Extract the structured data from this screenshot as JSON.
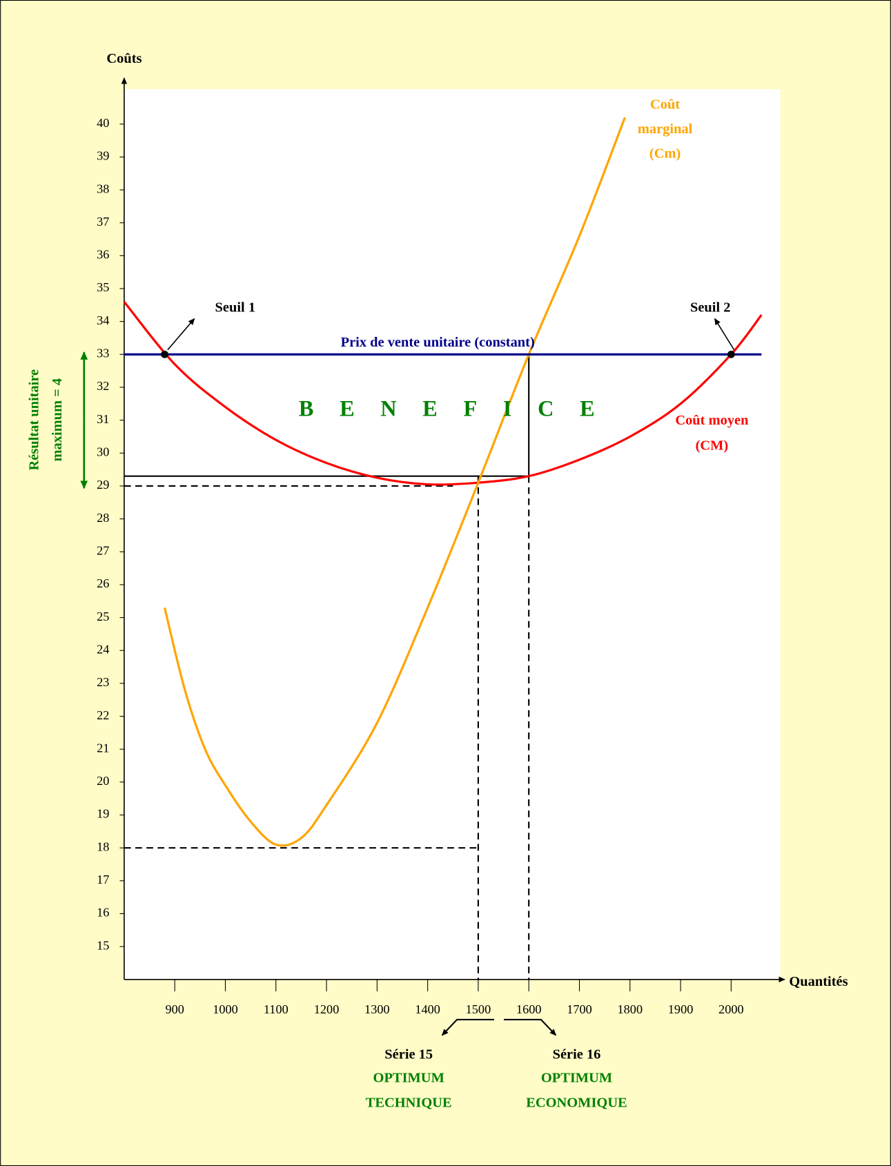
{
  "chart_data": {
    "type": "line",
    "y_label": "Coûts",
    "x_label": "Quantités",
    "xlim": [
      800,
      2097
    ],
    "ylim": [
      14,
      41.4
    ],
    "xticks": [
      900,
      1000,
      1100,
      1200,
      1300,
      1400,
      1500,
      1600,
      1700,
      1800,
      1900,
      2000
    ],
    "yticks": [
      15,
      16,
      17,
      18,
      19,
      20,
      21,
      22,
      23,
      24,
      25,
      26,
      27,
      28,
      29,
      30,
      31,
      32,
      33,
      34,
      35,
      36,
      37,
      38,
      39,
      40
    ],
    "series": [
      {
        "label": [
          "Coût moyen",
          "(CM)"
        ],
        "color": "#ff0000",
        "x": [
          800,
          900,
          1000,
          1100,
          1200,
          1300,
          1400,
          1500,
          1600,
          1700,
          1800,
          1900,
          2000,
          2060
        ],
        "values": [
          34.6,
          32.7,
          31.4,
          30.4,
          29.7,
          29.25,
          29.05,
          29.1,
          29.3,
          29.8,
          30.5,
          31.5,
          33.0,
          34.2
        ]
      },
      {
        "label": [
          "Coût",
          "marginal",
          "(Cm)"
        ],
        "color": "#ffa500",
        "x": [
          880,
          920,
          960,
          1000,
          1050,
          1100,
          1150,
          1200,
          1300,
          1400,
          1500,
          1600,
          1700,
          1790
        ],
        "values": [
          25.3,
          22.8,
          21.0,
          19.9,
          18.8,
          18.1,
          18.3,
          19.3,
          21.8,
          25.3,
          29.1,
          33.0,
          36.6,
          40.2
        ]
      },
      {
        "label": [
          "Prix de vente unitaire (constant)"
        ],
        "color": "#00008b",
        "x": [
          800,
          2060
        ],
        "values": [
          33,
          33
        ]
      }
    ],
    "points": [
      {
        "x": 880,
        "y": 33,
        "label": "Seuil 1"
      },
      {
        "x": 2000,
        "y": 33,
        "label": "Seuil 2"
      }
    ],
    "h_dashed": [
      {
        "x": 1450,
        "y": 29
      },
      {
        "x": 1500,
        "y": 18
      }
    ],
    "h_solid": [
      {
        "x": 1600,
        "y": 29.3
      }
    ],
    "v_dashed": [
      {
        "x": 1500,
        "y": 29.3
      },
      {
        "x": 1600,
        "y": 29.3
      }
    ],
    "v_solid": [
      {
        "x": 1600,
        "y": [
          33,
          29.3
        ]
      }
    ],
    "zone_label": "BENEFICE",
    "result": {
      "range": [
        29,
        33
      ],
      "label": [
        "Résultat unitaire",
        "maximum = 4"
      ]
    },
    "optima": [
      {
        "title": "Série 15",
        "label": [
          "OPTIMUM",
          "TECHNIQUE"
        ]
      },
      {
        "title": "Série 16",
        "label": [
          "OPTIMUM",
          "ECONOMIQUE"
        ]
      }
    ]
  }
}
